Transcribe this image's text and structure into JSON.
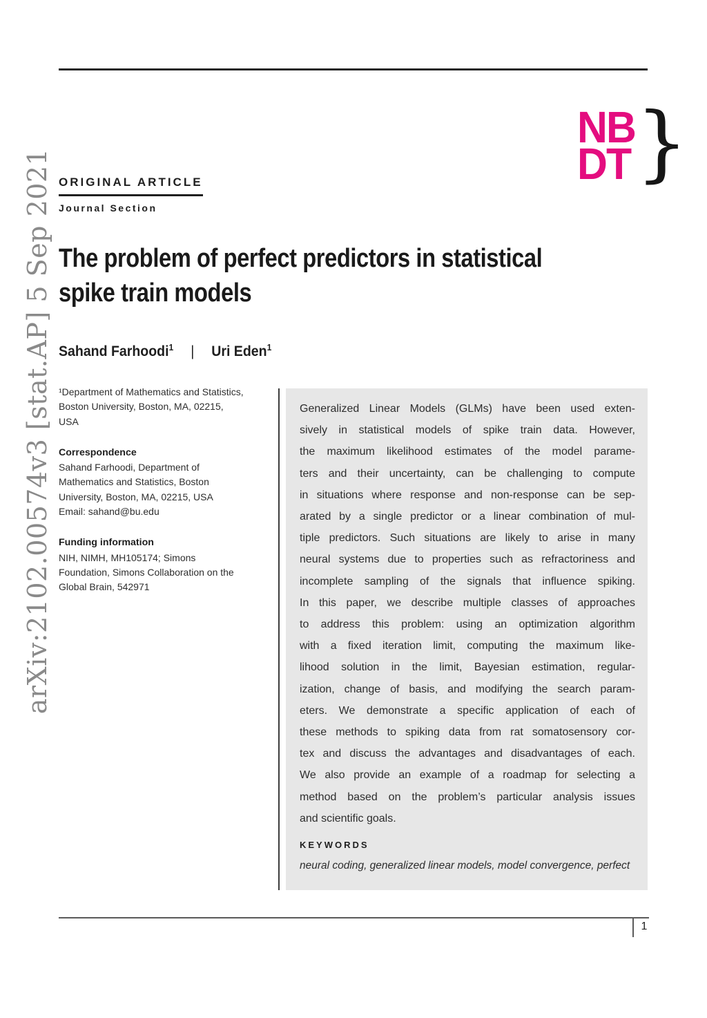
{
  "page": {
    "number": "1"
  },
  "watermark": {
    "text": "arXiv:2102.00574v3 [stat.AP] 5 Sep 2021",
    "color": "#8a8a8a"
  },
  "logo": {
    "line1": "NB",
    "line2": "DT",
    "brace": "}",
    "accent_color": "#e40d7f"
  },
  "header": {
    "article_type": "ORIGINAL ARTICLE",
    "journal_section": "Journal Section"
  },
  "title": {
    "lines": [
      "The problem of perfect predictors in statistical",
      "spike train models"
    ]
  },
  "authors": [
    {
      "name": "Sahand Farhoodi",
      "sup": "1"
    },
    {
      "name": "Uri Eden",
      "sup": "1"
    }
  ],
  "authors_separator": "|",
  "left_column": {
    "affiliation_lines": [
      "¹Department of Mathematics and Statistics,",
      "Boston University, Boston, MA, 02215,",
      "USA"
    ],
    "correspondence_heading": "Correspondence",
    "correspondence_lines": [
      "Sahand Farhoodi, Department of",
      "Mathematics and Statistics, Boston",
      "University, Boston, MA, 02215, USA",
      "Email: sahand@bu.edu"
    ],
    "funding_heading": "Funding information",
    "funding_lines": [
      "NIH, NIMH, MH105174; Simons",
      "Foundation, Simons Collaboration on the",
      "Global Brain, 542971"
    ]
  },
  "abstract": {
    "background": "#e7e7e7",
    "lines": [
      "Generalized Linear Models (GLMs) have been used exten-",
      "sively in statistical models of spike train data. However,",
      "the maximum likelihood estimates of the model parame-",
      "ters and their uncertainty, can be challenging to compute",
      "in situations where response and non-response can be sep-",
      "arated by a single predictor or a linear combination of mul-",
      "tiple predictors. Such situations are likely to arise in many",
      "neural systems due to properties such as refractoriness and",
      "incomplete sampling of the signals that influence spiking.",
      "In this paper, we describe multiple classes of approaches",
      "to address this problem: using an optimization algorithm",
      "with a fixed iteration limit, computing the maximum like-",
      "lihood solution in the limit, Bayesian estimation, regular-",
      "ization, change of basis, and modifying the search param-",
      "eters. We demonstrate a specific application of each of",
      "these methods to spiking data from rat somatosensory cor-",
      "tex and discuss the advantages and disadvantages of each.",
      "We also provide an example of a roadmap for selecting a",
      "method based on the problem’s particular analysis issues",
      "and scientific goals."
    ],
    "keywords_heading": "KEYWORDS",
    "keywords": "neural coding, generalized linear models, model convergence, perfect"
  }
}
